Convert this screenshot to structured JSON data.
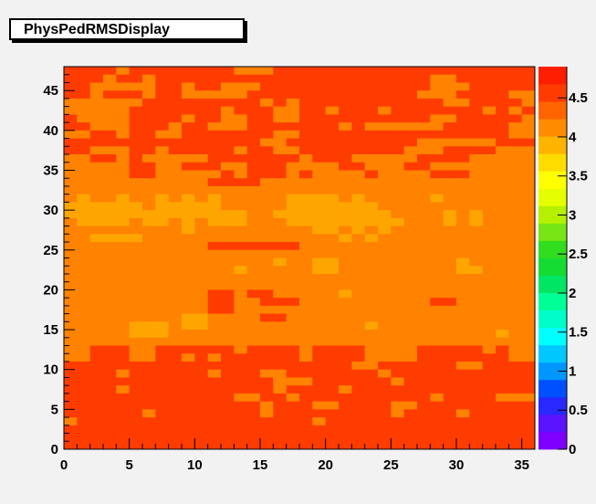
{
  "window": {
    "title": "PhysPedRMSDisplay"
  },
  "chart_data": {
    "type": "heatmap",
    "title": "PhysPedRMSDisplay",
    "xlabel": "",
    "ylabel": "",
    "xlim": [
      0,
      36
    ],
    "ylim": [
      0,
      48
    ],
    "x_ticks": [
      "0",
      "5",
      "10",
      "15",
      "20",
      "25",
      "30",
      "35"
    ],
    "y_ticks": [
      "0",
      "5",
      "10",
      "15",
      "20",
      "25",
      "30",
      "35",
      "40",
      "45"
    ],
    "colorbar": {
      "range": [
        0,
        4.9
      ],
      "ticks": [
        "0",
        "0.5",
        "1",
        "1.5",
        "2",
        "2.5",
        "3",
        "3.5",
        "4",
        "4.5"
      ],
      "colors": [
        "#7f00ff",
        "#5a14ff",
        "#2828ff",
        "#0050ff",
        "#0096ff",
        "#00c8ff",
        "#00ffff",
        "#00ffc8",
        "#00ff96",
        "#00e664",
        "#14dc32",
        "#32dc1e",
        "#78e614",
        "#b4f000",
        "#e6ff00",
        "#ffff00",
        "#ffdc00",
        "#ffb400",
        "#ff8c00",
        "#ff6400",
        "#ff3c00",
        "#ff1e00"
      ]
    },
    "grid": false,
    "rows_top_to_bottom": [
      "RRRRORRRRRRRROOORRRRRRRRRRRRRRRRRRRR",
      "RRRORRORRRRRRRRRRRRRRRRRRRRROORRRRRR",
      "RROOOOORRORROOORRRRRRRRRRRRROOORRRRR",
      "RRORRRORROOOOORRRRRRRRRRRRROOORRRROO",
      "OOOOOORRRRRRRRRORORRRRRRRRRRROORRRRO",
      "OOOOORRRRRRRORRROORRORRRORRRRRRROROR",
      "ROOOORRRRORROORROORRRRRRRRRROORRRRRO",
      "RROOORRRORROOORRRRRRROROOOOOORRRRROO",
      "OORRORROORRRRRRROORRRRRRRRRRRRRRRROO",
      "RRRRRRRRRRRRRRROORRRRRRRRRROOOOOORRR",
      "RROOORRORRRRRORROORRRRRRRROOORRRROOO",
      "OORROROOOOORRRRRRRORRROOOOORRRROOOOO",
      "OOOOORROORRROORRROOOORROOORROOOOOOOO",
      "OOOOORROOOOORORRROROOOOROOOORRROOOOO",
      "OOOOOOOOOOORRRROOOOOOOOOOOOOOOOOOOOO",
      "OOOOOOOOOOOOOOOOOOOOOOOOOOOOOOOOOOOO",
      "OAOOAOOAOAOAOOOOOAAAAOAOOOOOAOOOOOOO",
      "AAAAAAOAAAAAOOOOOAAAAAAAOOOOOOOOOOOO",
      "AAAAAAAAAAAAAAOOAAAAAAAAAOOOOAOAOOOO",
      "OAAAAOAAOAOAAAOOOAAAAAAAAAOOOAOAOOOO",
      "OOOOOOOOOAOOOOOOOOOAAOAOAOOOOOOOOOOO",
      "OOAAAAOOOOOOOOOOOOOOOAOAOOOOOOOOOOOO",
      "OOOOOOOOOOORRRRRRROOOOOOOOOOOOOOOOOO",
      "OOOOOOOOOOOOOOOOOOOOOOOOOOOOOOOOOOOO",
      "OOOOOOOOOOOOOOOOAOOAAOOOOOOOOOAOOOOO",
      "OOOOOOOOOOOOOAOOOOOAAOOOOOOOOOAAOOOO",
      "OOOOOOOOOOOOOOOOOOOOOOOOOOOOOOOOOOOO",
      "OOOOOOOOOOOOOOOOOOOOOOOOOOOOOOOOOOOO",
      "OOOOOOOOOOORRORROOOOOAOOOOOOOOOOOOOO",
      "OOOOOOOOOOORROORRROOOOOOOOOORROOOOOO",
      "OOOOOOOOOOORROOOOOOOOOOOOOOOOOOOOOOO",
      "OOOOOOOOOAAOOOORROOOOOOOOOOOOOOOOOOO",
      "OOOOOAAAOAAOOOOOOOOOOOOAOOOOOOOOOOOO",
      "OOOOOAAAOOOOOOOOOOOOOOOOOOOOOOOOOAOO",
      "OOOOOOOOOOOOOOOOOOOOOOOOOOOOOOOOOOOO",
      "OORRROORRRRRRORRRRORRRROOOORRRRROROO",
      "OORRROORRORORRRRRRORRRROOOORRRRRRROO",
      "RRRRRRRRRRRRRRRRRRRRRROORRRRRROORRRR",
      "RRRRORRRRRRORRROORRRRRRRORRRRRRRRRRR",
      "RRRRRRRRRRRRRRRROOORRRRRRORRRRRRRRRR",
      "RRRRORRRRRRRRRRRORRRRORRRRRRRRRRRRRR",
      "RRRRRRRRRRRRROORRORRRRRRRRRRORRRROOO",
      "RRRRRRRRRRRRRRRORRROORRRROORRRRRRRRR",
      "RRRRRRORRRRRRRRORRRRRRRRRORRRRORRRRR",
      "ORRRRRRRRRRRRRRRRRRORRRRRRRRRRRRRRRR",
      "RRRRRRRRRRRRRRRRRRRRRRRRRRRRRRRRRRRR",
      "RRRRRRRRRRRRRRRRRRRRRRRRRRRRRRRRRRRR",
      "RRRRRRRRRRRRRRRRRRRRRRRRRRRRRRRRRRRR"
    ],
    "cell_colors": {
      "R": "#ff3c00",
      "O": "#ff8200",
      "A": "#ffa500"
    }
  }
}
